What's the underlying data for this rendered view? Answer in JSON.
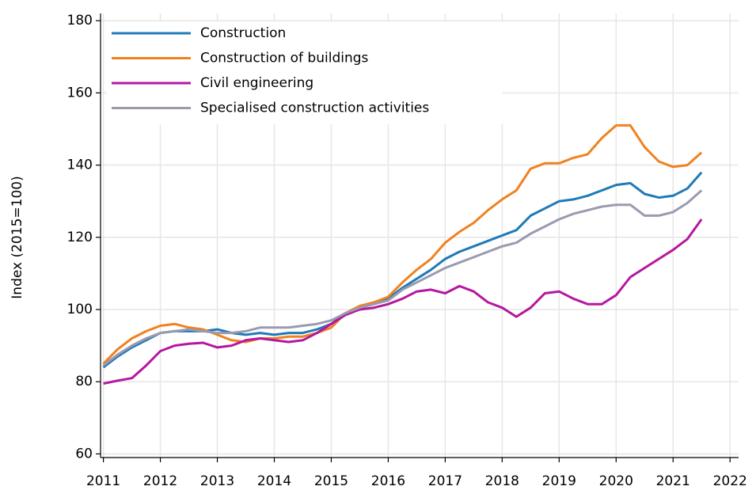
{
  "chart_data": {
    "type": "line",
    "y_label": "Index (2015=100)",
    "x": [
      2011,
      2011.25,
      2011.5,
      2011.75,
      2012,
      2012.25,
      2012.5,
      2012.75,
      2013,
      2013.25,
      2013.5,
      2013.75,
      2014,
      2014.25,
      2014.5,
      2014.75,
      2015,
      2015.25,
      2015.5,
      2015.75,
      2016,
      2016.25,
      2016.5,
      2016.75,
      2017,
      2017.25,
      2017.5,
      2017.75,
      2018,
      2018.25,
      2018.5,
      2018.75,
      2019,
      2019.25,
      2019.5,
      2019.75,
      2020,
      2020.25,
      2020.5,
      2020.75,
      2021,
      2021.25,
      2021.5
    ],
    "series": [
      {
        "name": "Construction",
        "color": "#1f7ab8",
        "values": [
          84,
          87,
          89.5,
          91.5,
          93.5,
          94,
          94,
          94,
          94.5,
          93.5,
          93,
          93.5,
          93,
          93.5,
          93.5,
          94.5,
          96,
          99,
          100.5,
          101.5,
          103,
          106,
          108.5,
          111,
          114,
          116,
          117.5,
          119,
          120.5,
          122,
          126,
          128,
          130,
          130.5,
          131.5,
          133,
          134.5,
          135,
          132,
          131,
          131.5,
          133.5,
          138
        ]
      },
      {
        "name": "Construction of buildings",
        "color": "#f0821e",
        "values": [
          85,
          89,
          92,
          94,
          95.5,
          96,
          95,
          94.5,
          93,
          91.5,
          91,
          92,
          92,
          92.5,
          92.5,
          93.5,
          95,
          99,
          101,
          102,
          103.5,
          107.5,
          111,
          114,
          118.5,
          121.5,
          124,
          127.5,
          130.5,
          133,
          139,
          140.5,
          140.5,
          142,
          143,
          147.5,
          151,
          151,
          145,
          141,
          139.5,
          140,
          143.5
        ]
      },
      {
        "name": "Civil engineering",
        "color": "#b5179e",
        "values": [
          79.5,
          80.3,
          81,
          84.5,
          88.5,
          90,
          90.5,
          90.8,
          89.5,
          90,
          91.5,
          92,
          91.5,
          91,
          91.5,
          93.5,
          96,
          98.5,
          100,
          100.5,
          101.5,
          103,
          105,
          105.5,
          104.5,
          106.5,
          105,
          102,
          100.5,
          98,
          100.5,
          104.5,
          105,
          103,
          101.5,
          101.5,
          104,
          109,
          111.5,
          114,
          116.5,
          119.5,
          125
        ]
      },
      {
        "name": "Specialised construction activities",
        "color": "#9a9ab0",
        "values": [
          84.5,
          87.5,
          90,
          92,
          93.5,
          94,
          94.5,
          94,
          93.5,
          93.5,
          94,
          95,
          95,
          95,
          95.5,
          96,
          97,
          99,
          100.5,
          101.5,
          102.5,
          105.5,
          107.5,
          109.5,
          111.5,
          113,
          114.5,
          116,
          117.5,
          118.5,
          121,
          123,
          125,
          126.5,
          127.5,
          128.5,
          129,
          129,
          126,
          126,
          127,
          129.5,
          133
        ]
      }
    ],
    "xlim": [
      2010.95,
      2022.15
    ],
    "xticks": [
      2011,
      2012,
      2013,
      2014,
      2015,
      2016,
      2017,
      2018,
      2019,
      2020,
      2021,
      2022
    ],
    "ylim": [
      59,
      182
    ],
    "yticks": [
      60,
      80,
      100,
      120,
      140,
      160,
      180
    ],
    "grid": true,
    "legend": "top-left"
  }
}
